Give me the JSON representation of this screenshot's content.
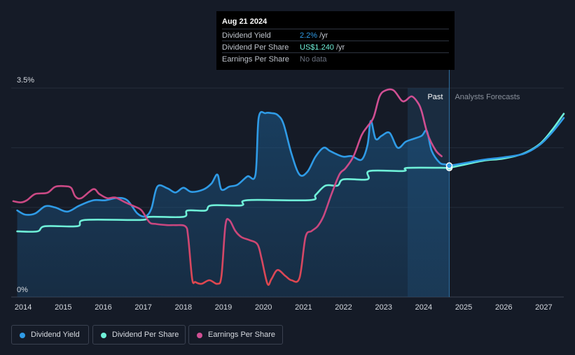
{
  "tooltip": {
    "date": "Aug 21 2024",
    "rows": [
      {
        "label": "Dividend Yield",
        "value": "2.2%",
        "unit": "/yr",
        "color": "#2f9be6"
      },
      {
        "label": "Dividend Per Share",
        "value": "US$1.240",
        "unit": "/yr",
        "color": "#6ff0d8"
      },
      {
        "label": "Earnings Per Share",
        "value": "No data",
        "unit": "",
        "color": "#6b7280"
      }
    ]
  },
  "legend": [
    {
      "label": "Dividend Yield",
      "color": "#2f9be6"
    },
    {
      "label": "Dividend Per Share",
      "color": "#6ff0d8"
    },
    {
      "label": "Earnings Per Share",
      "color": "#d04f93"
    }
  ],
  "chart_data": {
    "type": "line",
    "region_labels": {
      "past": "Past",
      "forecast": "Analysts Forecasts"
    },
    "y_tick_labels": [
      "3.5%",
      "0%"
    ],
    "x_tick_labels": [
      "2014",
      "2015",
      "2016",
      "2017",
      "2018",
      "2019",
      "2020",
      "2021",
      "2022",
      "2023",
      "2024",
      "2025",
      "2026",
      "2027"
    ],
    "x_range": [
      2013.7,
      2027.5
    ],
    "y_range_percent": [
      0,
      3.5
    ],
    "past_forecast_boundary": 2024.64,
    "shaded_recent_start": 2023.6,
    "grid": true,
    "series": [
      {
        "name": "Dividend Yield",
        "unit": "percent",
        "color": "#2f9be6",
        "area": true,
        "points": [
          [
            2013.85,
            1.45
          ],
          [
            2014.05,
            1.38
          ],
          [
            2014.3,
            1.4
          ],
          [
            2014.55,
            1.52
          ],
          [
            2014.8,
            1.5
          ],
          [
            2015.1,
            1.43
          ],
          [
            2015.4,
            1.53
          ],
          [
            2015.75,
            1.62
          ],
          [
            2016.05,
            1.62
          ],
          [
            2016.35,
            1.66
          ],
          [
            2016.6,
            1.62
          ],
          [
            2016.85,
            1.4
          ],
          [
            2017.05,
            1.35
          ],
          [
            2017.2,
            1.48
          ],
          [
            2017.35,
            1.85
          ],
          [
            2017.6,
            1.82
          ],
          [
            2017.8,
            1.75
          ],
          [
            2018.0,
            1.83
          ],
          [
            2018.2,
            1.76
          ],
          [
            2018.5,
            1.8
          ],
          [
            2018.7,
            1.9
          ],
          [
            2018.85,
            2.05
          ],
          [
            2018.95,
            1.8
          ],
          [
            2019.15,
            1.85
          ],
          [
            2019.35,
            1.88
          ],
          [
            2019.6,
            2.02
          ],
          [
            2019.8,
            2.05
          ],
          [
            2019.88,
            3.0
          ],
          [
            2020.05,
            3.08
          ],
          [
            2020.2,
            3.08
          ],
          [
            2020.35,
            3.05
          ],
          [
            2020.5,
            2.9
          ],
          [
            2020.7,
            2.4
          ],
          [
            2020.9,
            2.05
          ],
          [
            2021.1,
            2.1
          ],
          [
            2021.3,
            2.35
          ],
          [
            2021.5,
            2.5
          ],
          [
            2021.65,
            2.45
          ],
          [
            2021.8,
            2.4
          ],
          [
            2022.0,
            2.35
          ],
          [
            2022.2,
            2.36
          ],
          [
            2022.45,
            2.3
          ],
          [
            2022.6,
            2.55
          ],
          [
            2022.68,
            2.95
          ],
          [
            2022.8,
            2.65
          ],
          [
            2022.95,
            2.7
          ],
          [
            2023.15,
            2.75
          ],
          [
            2023.35,
            2.5
          ],
          [
            2023.55,
            2.6
          ],
          [
            2023.75,
            2.65
          ],
          [
            2023.95,
            2.7
          ],
          [
            2024.08,
            2.78
          ],
          [
            2024.2,
            2.45
          ],
          [
            2024.4,
            2.25
          ],
          [
            2024.55,
            2.22
          ],
          [
            2024.64,
            2.2
          ]
        ]
      },
      {
        "name": "Dividend Yield (forecast)",
        "unit": "percent",
        "color": "#2f9be6",
        "points": [
          [
            2024.64,
            2.2
          ],
          [
            2025.0,
            2.24
          ],
          [
            2025.5,
            2.3
          ],
          [
            2026.0,
            2.34
          ],
          [
            2026.5,
            2.4
          ],
          [
            2026.9,
            2.55
          ],
          [
            2027.2,
            2.75
          ],
          [
            2027.5,
            3.0
          ]
        ]
      },
      {
        "name": "Dividend Per Share",
        "unit": "USD",
        "color": "#6ff0d8",
        "points": [
          [
            2013.85,
            0.63
          ],
          [
            2014.35,
            0.63
          ],
          [
            2014.55,
            0.68
          ],
          [
            2015.35,
            0.68
          ],
          [
            2015.55,
            0.74
          ],
          [
            2016.95,
            0.74
          ],
          [
            2017.15,
            0.77
          ],
          [
            2018.0,
            0.77
          ],
          [
            2018.1,
            0.83
          ],
          [
            2018.55,
            0.83
          ],
          [
            2018.7,
            0.88
          ],
          [
            2019.45,
            0.88
          ],
          [
            2019.6,
            0.93
          ],
          [
            2021.15,
            0.93
          ],
          [
            2021.3,
            0.98
          ],
          [
            2021.55,
            1.07
          ],
          [
            2021.85,
            1.07
          ],
          [
            2022.0,
            1.13
          ],
          [
            2022.6,
            1.13
          ],
          [
            2022.65,
            1.21
          ],
          [
            2023.5,
            1.21
          ],
          [
            2023.6,
            1.24
          ],
          [
            2024.64,
            1.24
          ]
        ]
      },
      {
        "name": "Dividend Per Share (forecast)",
        "unit": "USD",
        "color": "#6ff0d8",
        "points": [
          [
            2024.64,
            1.24
          ],
          [
            2025.0,
            1.27
          ],
          [
            2025.5,
            1.31
          ],
          [
            2026.0,
            1.33
          ],
          [
            2026.5,
            1.38
          ],
          [
            2026.9,
            1.47
          ],
          [
            2027.2,
            1.6
          ],
          [
            2027.5,
            1.76
          ]
        ]
      },
      {
        "name": "Earnings Per Share",
        "unit": "normalized",
        "color": "#d04f93",
        "color_low": "#e0474c",
        "points": [
          [
            2013.75,
            1.6
          ],
          [
            2013.95,
            1.58
          ],
          [
            2014.1,
            1.62
          ],
          [
            2014.3,
            1.72
          ],
          [
            2014.6,
            1.74
          ],
          [
            2014.8,
            1.84
          ],
          [
            2015.05,
            1.85
          ],
          [
            2015.2,
            1.82
          ],
          [
            2015.3,
            1.68
          ],
          [
            2015.45,
            1.65
          ],
          [
            2015.75,
            1.8
          ],
          [
            2015.9,
            1.72
          ],
          [
            2016.1,
            1.65
          ],
          [
            2016.3,
            1.66
          ],
          [
            2016.55,
            1.58
          ],
          [
            2016.75,
            1.52
          ],
          [
            2016.95,
            1.45
          ],
          [
            2017.15,
            1.25
          ],
          [
            2017.3,
            1.22
          ],
          [
            2017.6,
            1.2
          ],
          [
            2017.8,
            1.2
          ],
          [
            2018.05,
            1.18
          ],
          [
            2018.12,
            1.0
          ],
          [
            2018.22,
            0.3
          ],
          [
            2018.3,
            0.25
          ],
          [
            2018.45,
            0.22
          ],
          [
            2018.65,
            0.28
          ],
          [
            2018.85,
            0.22
          ],
          [
            2018.95,
            0.35
          ],
          [
            2019.05,
            1.2
          ],
          [
            2019.15,
            1.28
          ],
          [
            2019.3,
            1.1
          ],
          [
            2019.45,
            1.0
          ],
          [
            2019.65,
            0.95
          ],
          [
            2019.85,
            0.88
          ],
          [
            2019.95,
            0.65
          ],
          [
            2020.1,
            0.22
          ],
          [
            2020.2,
            0.3
          ],
          [
            2020.35,
            0.45
          ],
          [
            2020.55,
            0.35
          ],
          [
            2020.7,
            0.28
          ],
          [
            2020.9,
            0.32
          ],
          [
            2021.05,
            1.0
          ],
          [
            2021.2,
            1.1
          ],
          [
            2021.35,
            1.18
          ],
          [
            2021.5,
            1.35
          ],
          [
            2021.7,
            1.72
          ],
          [
            2021.9,
            2.05
          ],
          [
            2022.05,
            2.15
          ],
          [
            2022.25,
            2.35
          ],
          [
            2022.45,
            2.7
          ],
          [
            2022.6,
            2.85
          ],
          [
            2022.75,
            3.0
          ],
          [
            2022.9,
            3.35
          ],
          [
            2023.05,
            3.45
          ],
          [
            2023.25,
            3.45
          ],
          [
            2023.45,
            3.28
          ],
          [
            2023.55,
            3.28
          ],
          [
            2023.7,
            3.35
          ],
          [
            2023.85,
            3.25
          ],
          [
            2023.95,
            3.1
          ],
          [
            2024.1,
            2.72
          ],
          [
            2024.3,
            2.45
          ],
          [
            2024.45,
            2.35
          ]
        ]
      }
    ]
  }
}
